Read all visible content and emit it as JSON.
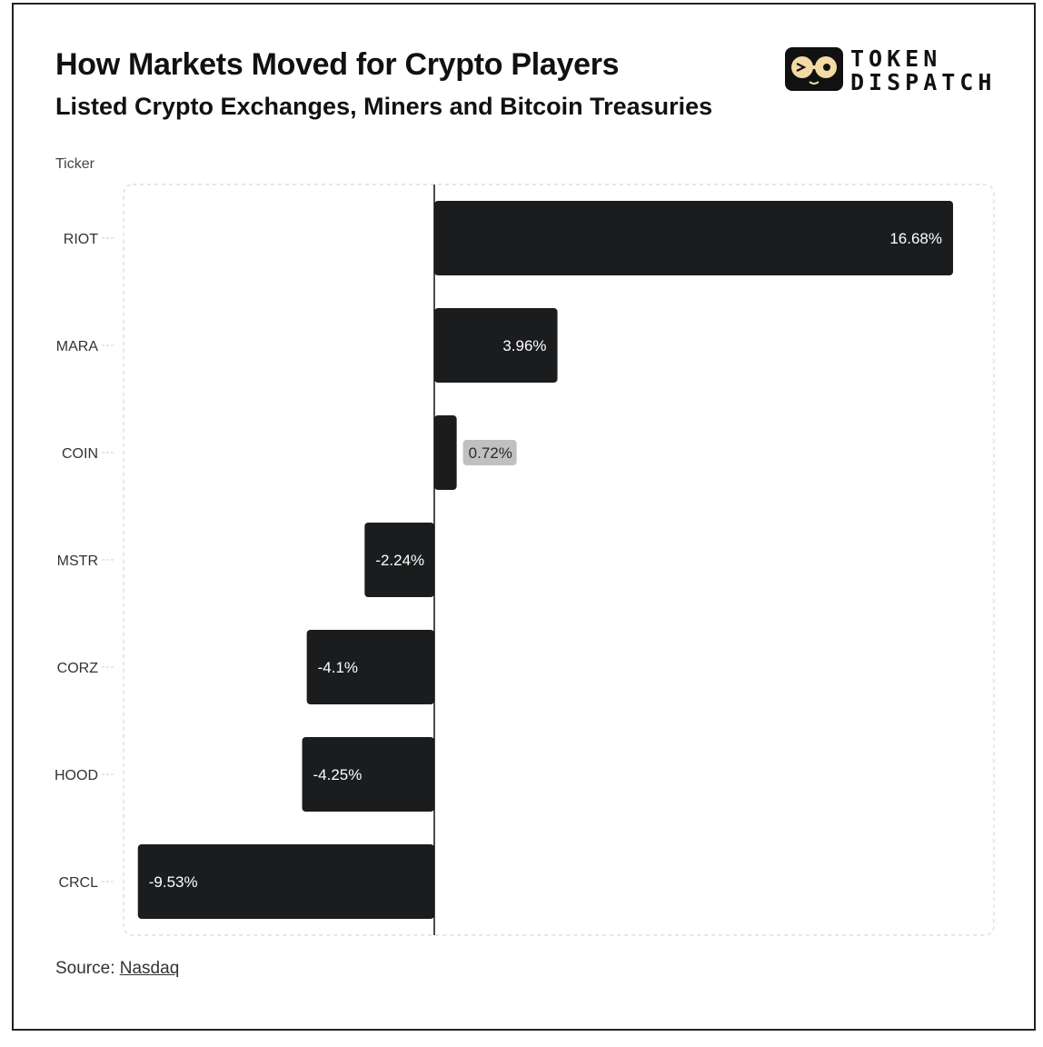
{
  "title": "How Markets Moved for Crypto Players",
  "subtitle": "Listed Crypto Exchanges, Miners and Bitcoin Treasuries",
  "logo": {
    "line1": "TOKEN",
    "line2": "DISPATCH"
  },
  "source": {
    "label": "Source:",
    "link_text": "Nasdaq"
  },
  "colors": {
    "bar": "#1a1c1e",
    "bar_label": "#ffffff",
    "outside_label_bg": "#c0c0c0",
    "outside_label_text": "#2a2a2a"
  },
  "chart_data": {
    "type": "bar",
    "orientation": "horizontal",
    "title": "How Markets Moved for Crypto Players",
    "subtitle": "Listed Crypto Exchanges, Miners and Bitcoin Treasuries",
    "ylabel": "Ticker",
    "xlabel": "",
    "categories": [
      "RIOT",
      "MARA",
      "COIN",
      "MSTR",
      "CORZ",
      "HOOD",
      "CRCL"
    ],
    "values": [
      16.68,
      3.96,
      0.72,
      -2.24,
      -4.1,
      -4.25,
      -9.53
    ],
    "value_labels": [
      "16.68%",
      "3.96%",
      "0.72%",
      "-2.24%",
      "-4.1%",
      "-4.25%",
      "-9.53%"
    ],
    "xlim": [
      -10,
      18
    ],
    "grid": false,
    "legend": "none"
  }
}
